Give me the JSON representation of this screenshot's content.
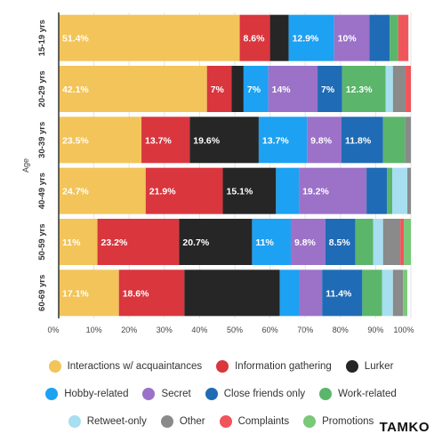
{
  "chart_data": {
    "type": "bar",
    "orientation": "horizontal",
    "stacked": true,
    "ylabel": "Age",
    "categories": [
      "15-19 yrs",
      "20-29 yrs",
      "30-39 yrs",
      "40-49 yrs",
      "50-59 yrs",
      "60-69 yrs"
    ],
    "xlim": [
      0,
      100
    ],
    "x_ticks": [
      "0%",
      "10%",
      "20%",
      "30%",
      "40%",
      "50%",
      "60%",
      "70%",
      "80%",
      "90%",
      "100%"
    ],
    "grid": true,
    "legend_position": "bottom",
    "series": [
      {
        "name": "Interactions w/ acquaintances",
        "color": "#F2C45A",
        "values": [
          51.4,
          42.1,
          23.5,
          24.7,
          11,
          17.1
        ],
        "labels": [
          "51.4%",
          "42.1%",
          "23.5%",
          "24.7%",
          "11%",
          "17.1%"
        ]
      },
      {
        "name": "Information gathering",
        "color": "#D9363E",
        "values": [
          8.6,
          7,
          13.7,
          21.9,
          23.2,
          18.6
        ],
        "labels": [
          "8.6%",
          "7%",
          "13.7%",
          "21.9%",
          "23.2%",
          "18.6%"
        ]
      },
      {
        "name": "Lurker",
        "color": "#262626",
        "values": [
          5.3,
          3.4,
          19.6,
          15.1,
          20.7,
          27.1
        ],
        "labels": [
          "",
          "",
          "19.6%",
          "15.1%",
          "20.7%",
          ""
        ]
      },
      {
        "name": "Hobby-related",
        "color": "#1DA1F2",
        "values": [
          12.9,
          7,
          13.7,
          6.5,
          11,
          5.5
        ],
        "labels": [
          "12.9%",
          "7%",
          "13.7%",
          "",
          "11%",
          ""
        ]
      },
      {
        "name": "Secret",
        "color": "#9B72C8",
        "values": [
          10,
          14,
          9.8,
          19.2,
          9.8,
          6.5
        ],
        "labels": [
          "10%",
          "14%",
          "9.8%",
          "19.2%",
          "9.8%",
          ""
        ]
      },
      {
        "name": "Close friends only",
        "color": "#1F6BB5",
        "values": [
          5.8,
          7,
          11.8,
          5.8,
          8.5,
          11.4
        ],
        "labels": [
          "",
          "7%",
          "11.8%",
          "",
          "8.5%",
          "11.4%"
        ]
      },
      {
        "name": "Work-related",
        "color": "#5BB56A",
        "values": [
          2.4,
          12.3,
          6.2,
          1.5,
          5.1,
          5.6
        ],
        "labels": [
          "",
          "12.3%",
          "",
          "",
          "",
          ""
        ]
      },
      {
        "name": "Retweet-only",
        "color": "#A7DEF0",
        "values": [
          0,
          2.1,
          0,
          4.3,
          2.8,
          3.1
        ],
        "labels": [
          "",
          "",
          "",
          "",
          "",
          ""
        ]
      },
      {
        "name": "Other",
        "color": "#8A8A8A",
        "values": [
          0,
          3.6,
          1.7,
          1,
          4.9,
          2.9
        ],
        "labels": [
          "",
          "",
          "",
          "",
          "",
          ""
        ]
      },
      {
        "name": "Complaints",
        "color": "#F0555B",
        "values": [
          2.9,
          1.5,
          0,
          0,
          1,
          0
        ],
        "labels": [
          "",
          "",
          "",
          "",
          "",
          ""
        ]
      },
      {
        "name": "Promotions",
        "color": "#79C978",
        "values": [
          0,
          0,
          0,
          0,
          2,
          1.2
        ],
        "labels": [
          "",
          "",
          "",
          "",
          "",
          ""
        ]
      }
    ]
  },
  "legend_rows": [
    [
      0,
      1,
      2
    ],
    [
      3,
      4,
      5,
      6
    ],
    [
      7,
      8,
      9,
      10
    ]
  ],
  "brand": "TAMKO"
}
